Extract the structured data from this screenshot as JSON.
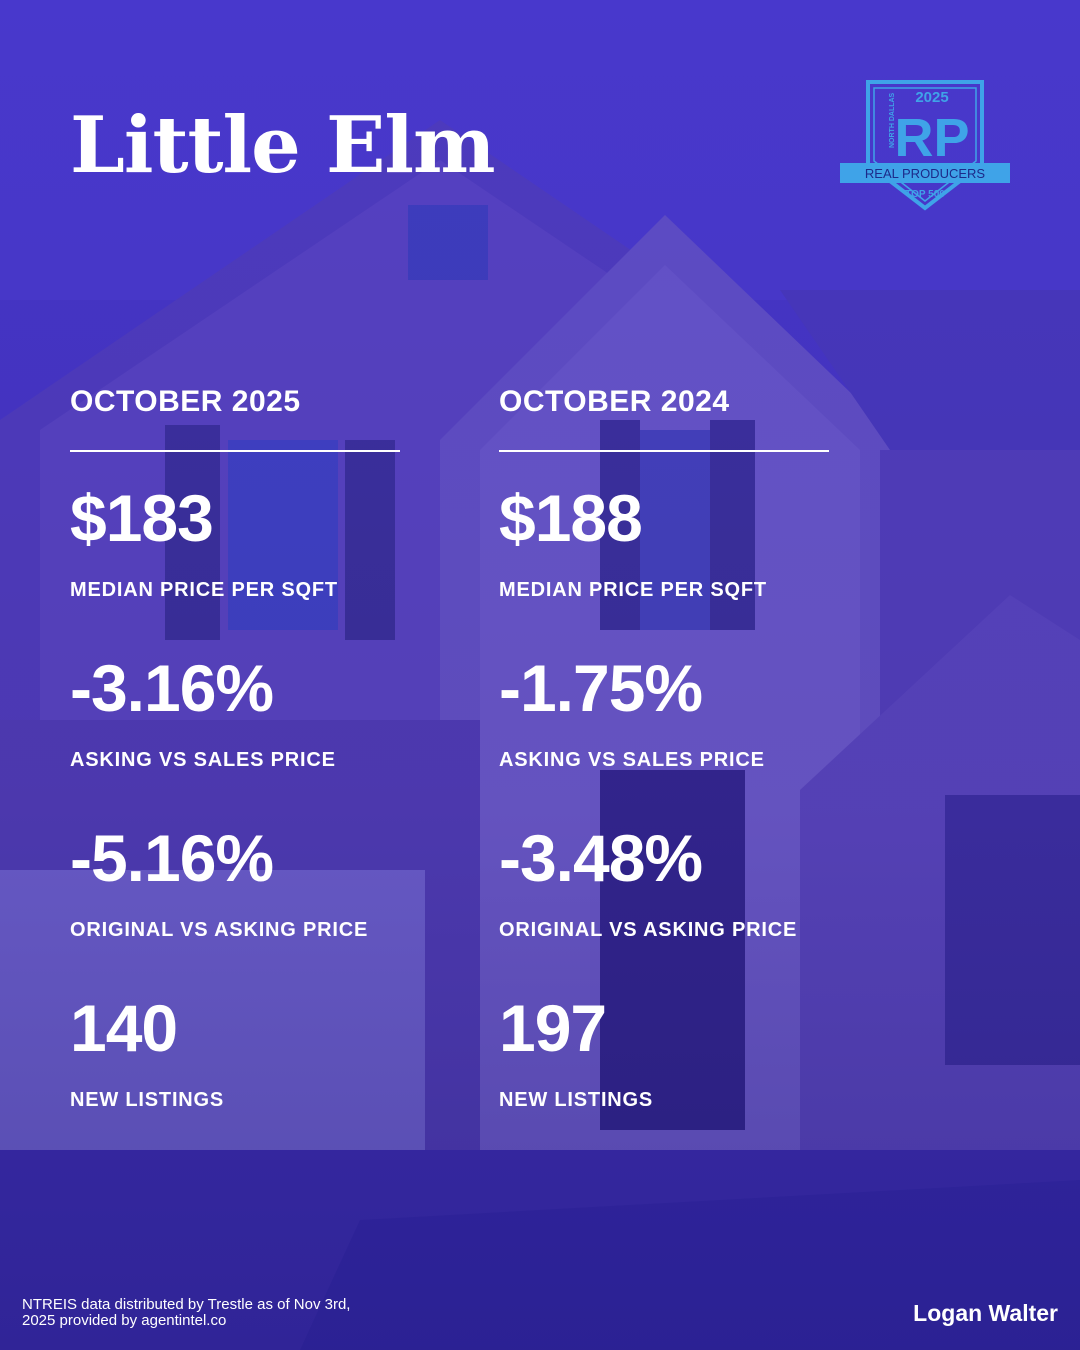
{
  "title": "Little Elm",
  "badge": {
    "year": "2025",
    "region": "NORTH DALLAS",
    "monogram": "RP",
    "ribbon": "REAL PRODUCERS",
    "tier": "TOP 500",
    "accent": "#3fa3e8"
  },
  "columns": [
    {
      "header": "OCTOBER 2025",
      "stats": [
        {
          "value": "$183",
          "label": "MEDIAN PRICE PER SQFT"
        },
        {
          "value": "-3.16%",
          "label": "ASKING VS SALES PRICE"
        },
        {
          "value": "-5.16%",
          "label": "ORIGINAL VS ASKING PRICE"
        },
        {
          "value": "140",
          "label": "NEW LISTINGS"
        }
      ]
    },
    {
      "header": "OCTOBER 2024",
      "stats": [
        {
          "value": "$188",
          "label": "MEDIAN PRICE PER SQFT"
        },
        {
          "value": "-1.75%",
          "label": "ASKING VS SALES PRICE"
        },
        {
          "value": "-3.48%",
          "label": "ORIGINAL VS ASKING PRICE"
        },
        {
          "value": "197",
          "label": "NEW LISTINGS"
        }
      ]
    }
  ],
  "footer": {
    "source": "NTREIS data distributed by Trestle as of Nov 3rd, 2025 provided by agentintel.co",
    "agent": "Logan Walter"
  },
  "colors": {
    "overlay": "#3c2bb8",
    "text": "#ffffff"
  }
}
